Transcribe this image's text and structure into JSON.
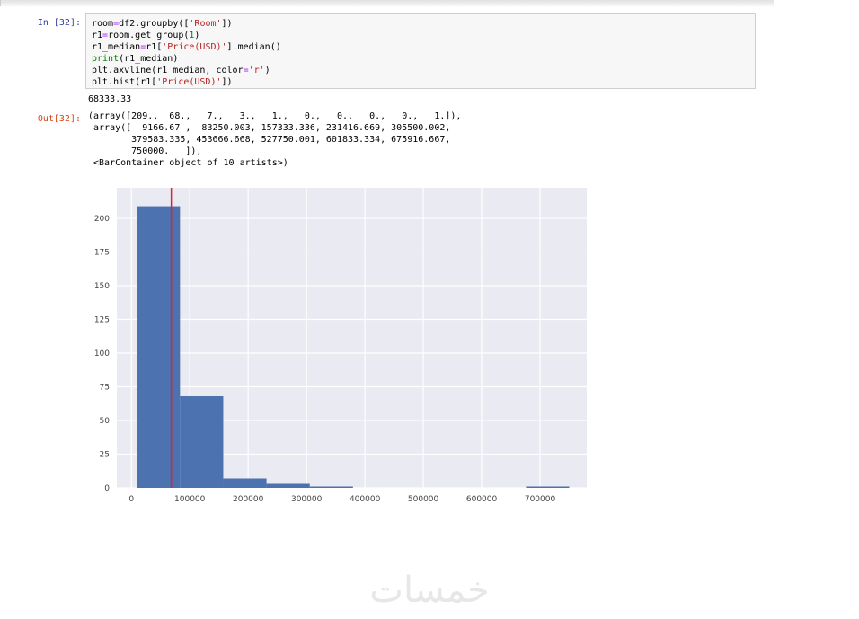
{
  "cell": {
    "in_prompt": "In [32]:",
    "out_prompt": "Out[32]:",
    "code_lines": [
      [
        [
          "room",
          ""
        ],
        [
          "=",
          "op"
        ],
        [
          "df2.groupby([",
          ""
        ],
        [
          "'Room'",
          "str"
        ],
        [
          "])",
          ""
        ]
      ],
      [
        [
          "r1",
          ""
        ],
        [
          "=",
          "op"
        ],
        [
          "room.get_group(",
          ""
        ],
        [
          "1",
          "num"
        ],
        [
          ")",
          ""
        ]
      ],
      [
        [
          "r1_median",
          ""
        ],
        [
          "=",
          "op"
        ],
        [
          "r1[",
          ""
        ],
        [
          "'Price(USD)'",
          "str"
        ],
        [
          "].median()",
          ""
        ]
      ],
      [
        [
          "print",
          "bi"
        ],
        [
          "(r1_median)",
          ""
        ]
      ],
      [
        [
          "plt.axvline(r1_median, color",
          ""
        ],
        [
          "=",
          "op"
        ],
        [
          "'r'",
          "str"
        ],
        [
          ")",
          ""
        ]
      ],
      [
        [
          "plt.hist(r1[",
          ""
        ],
        [
          "'Price(USD)'",
          "str"
        ],
        [
          "])",
          ""
        ]
      ]
    ],
    "stdout": "68333.33",
    "output_lines": [
      "(array([209.,  68.,   7.,   3.,   1.,   0.,   0.,   0.,   0.,   1.]),",
      " array([  9166.67 ,  83250.003, 157333.336, 231416.669, 305500.002,",
      "        379583.335, 453666.668, 527750.001, 601833.334, 675916.667,",
      "        750000.   ]),",
      " <BarContainer object of 10 artists>)"
    ]
  },
  "chart_data": {
    "type": "histogram",
    "title": "",
    "xlabel": "",
    "ylabel": "",
    "counts": [
      209,
      68,
      7,
      3,
      1,
      0,
      0,
      0,
      0,
      1
    ],
    "bin_edges": [
      9166.67,
      83250.003,
      157333.336,
      231416.669,
      305500.002,
      379583.335,
      453666.668,
      527750.001,
      601833.334,
      675916.667,
      750000.0
    ],
    "median_vline_x": 68333.33,
    "x_ticks": [
      0,
      100000,
      200000,
      300000,
      400000,
      500000,
      600000,
      700000
    ],
    "y_ticks": [
      0,
      25,
      50,
      75,
      100,
      125,
      150,
      175,
      200
    ],
    "xlim": [
      -25000,
      780000
    ],
    "ylim": [
      0,
      222.7
    ],
    "grid": true,
    "legend": false,
    "colors": {
      "bar": "#4c72b0",
      "vline": "#dd2233",
      "plot_bg": "#eaeaf2",
      "grid": "#ffffff",
      "tick_label": "#444444"
    }
  },
  "watermark": {
    "text": "خمسات"
  }
}
